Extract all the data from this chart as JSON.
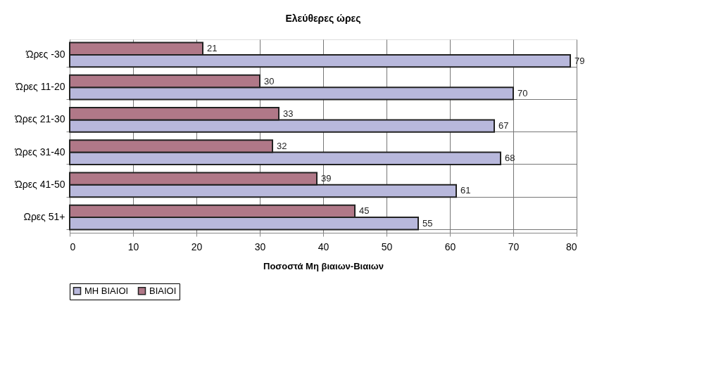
{
  "chart_data": {
    "type": "bar",
    "orientation": "horizontal",
    "title": "Ελεύθερες ώρες",
    "xlabel": "Ποσοστά Μη βιαιων-Βιαιων",
    "categories": [
      "Ώρες -30",
      "Ώρες 11-20",
      "Ώρες 21-30",
      "Ώρες 31-40",
      "Ώρες 41-50",
      "Ωρες 51+"
    ],
    "series": [
      {
        "name": "ΜΗ ΒΙΑΙΟΙ",
        "color": "#b8b8dc",
        "values": [
          79,
          70,
          67,
          68,
          61,
          55
        ]
      },
      {
        "name": "ΒΙΑΙΟΙ",
        "color": "#b07888",
        "values": [
          21,
          30,
          33,
          32,
          39,
          45
        ]
      }
    ],
    "xlim": [
      0,
      80
    ],
    "xticks": [
      0,
      10,
      20,
      30,
      40,
      50,
      60,
      70,
      80
    ],
    "grid": true,
    "legend": "bottom",
    "data_labels": true
  }
}
